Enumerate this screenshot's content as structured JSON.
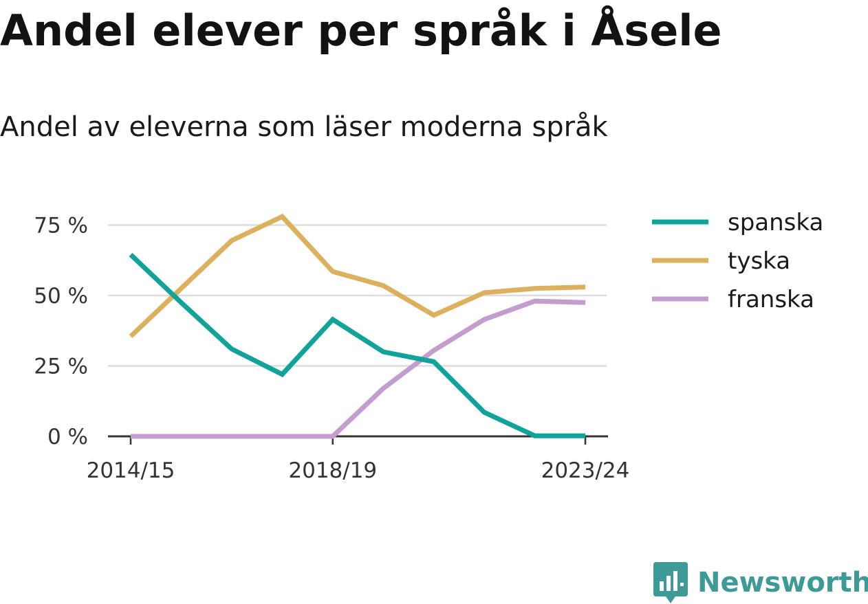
{
  "title": "Andel elever per språk i Åsele",
  "subtitle": "Andel av eleverna som läser moderna språk",
  "brand": {
    "name": "Newsworthy",
    "color": "#3d9a96"
  },
  "chart_data": {
    "type": "line",
    "title": "Andel elever per språk i Åsele",
    "subtitle": "Andel av eleverna som läser moderna språk",
    "x": [
      "2014/15",
      "2015/16",
      "2016/17",
      "2017/18",
      "2018/19",
      "2019/20",
      "2020/21",
      "2021/22",
      "2022/23",
      "2023/24"
    ],
    "x_tick_labels": [
      "2014/15",
      "2018/19",
      "2023/24"
    ],
    "y_ticks": [
      0,
      25,
      50,
      75
    ],
    "y_tick_labels": [
      "0 %",
      "25 %",
      "50 %",
      "75 %"
    ],
    "ylim": [
      0,
      80
    ],
    "grid": true,
    "legend_position": "right",
    "series": [
      {
        "name": "spanska",
        "color": "#0fa39a",
        "values": [
          64.5,
          47.5,
          31,
          22,
          41.5,
          30,
          26.5,
          8.5,
          0.2,
          0.2
        ]
      },
      {
        "name": "tyska",
        "color": "#dcb05c",
        "values": [
          35.5,
          52.5,
          69.5,
          78,
          58.5,
          53.5,
          43,
          51,
          52.5,
          53
        ]
      },
      {
        "name": "franska",
        "color": "#c39dce",
        "values": [
          0,
          0,
          0,
          0,
          0,
          17,
          30.5,
          41.5,
          48,
          47.5
        ]
      }
    ]
  }
}
